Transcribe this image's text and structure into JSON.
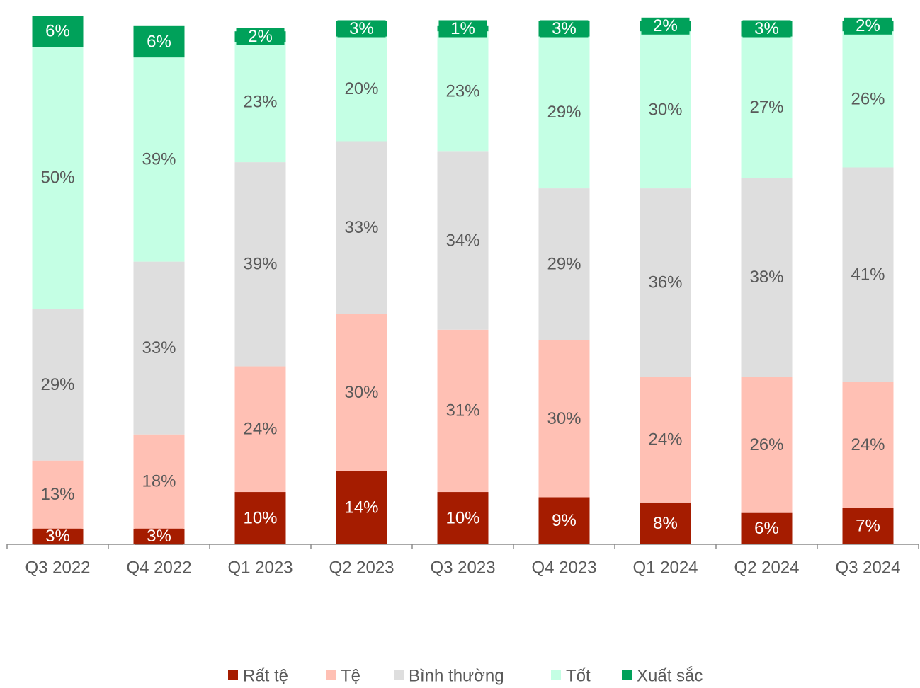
{
  "chart_data": {
    "type": "stacked_bar",
    "categories": [
      "Q3 2022",
      "Q4 2022",
      "Q1 2023",
      "Q2 2023",
      "Q3 2023",
      "Q4 2023",
      "Q1 2024",
      "Q2 2024",
      "Q3 2024"
    ],
    "series": [
      {
        "name": "Rất tệ",
        "color": "#a51c00",
        "values": [
          3,
          3,
          10,
          14,
          10,
          9,
          8,
          6,
          7
        ],
        "value_labels": [
          "3%",
          "3%",
          "10%",
          "14%",
          "10%",
          "9%",
          "8%",
          "6%",
          "7%"
        ]
      },
      {
        "name": "Tệ",
        "color": "#ffc0b4",
        "values": [
          13,
          18,
          24,
          30,
          31,
          30,
          24,
          26,
          24
        ],
        "value_labels": [
          "13%",
          "18%",
          "24%",
          "30%",
          "31%",
          "30%",
          "24%",
          "26%",
          "24%"
        ]
      },
      {
        "name": "Bình thường",
        "color": "#dedede",
        "values": [
          29,
          33,
          39,
          33,
          34,
          29,
          36,
          38,
          41
        ],
        "value_labels": [
          "29%",
          "33%",
          "39%",
          "33%",
          "34%",
          "29%",
          "36%",
          "38%",
          "41%"
        ]
      },
      {
        "name": "Tốt",
        "color": "#c4ffe4",
        "values": [
          50,
          39,
          23,
          20,
          23,
          29,
          30,
          27,
          26
        ],
        "value_labels": [
          "50%",
          "39%",
          "23%",
          "20%",
          "23%",
          "29%",
          "30%",
          "27%",
          "26%"
        ]
      },
      {
        "name": "Xuất sắc",
        "color": "#00a15a",
        "values": [
          6,
          6,
          2,
          3,
          1,
          3,
          2,
          3,
          2
        ],
        "value_labels": [
          "6%",
          "6%",
          "2%",
          "3%",
          "1%",
          "3%",
          "2%",
          "3%",
          "2%"
        ]
      }
    ]
  }
}
